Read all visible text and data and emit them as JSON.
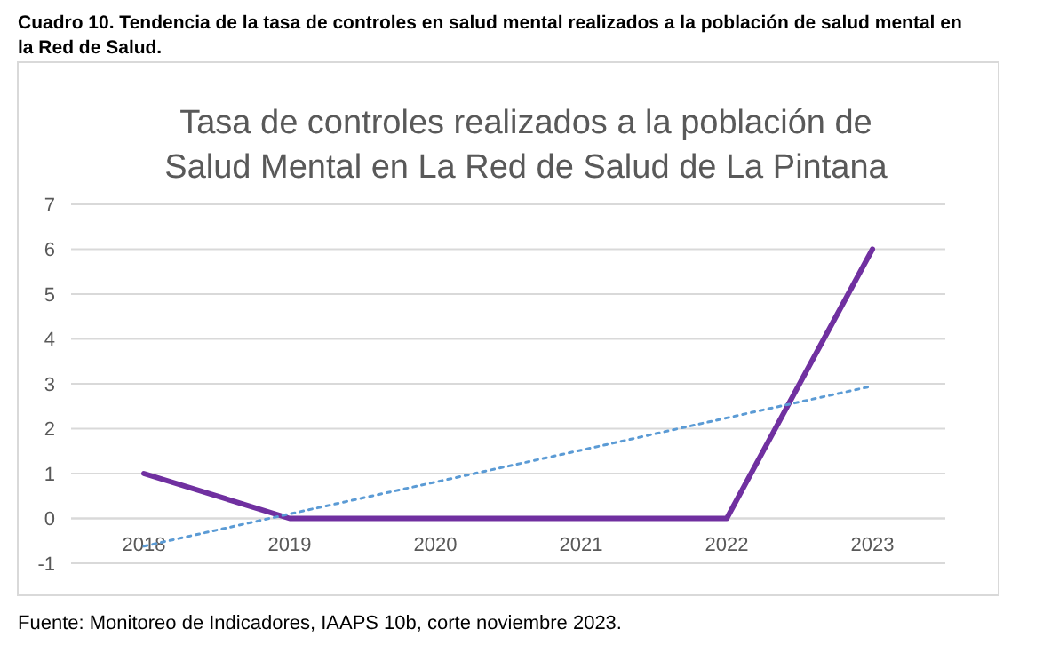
{
  "chart_data": {
    "type": "line",
    "subtitle": "Cuadro 10. Tendencia de la tasa de controles en salud mental realizados a la población de salud mental en la Red de Salud.",
    "title": "Tasa de controles realizados a la población de Salud Mental en La Red de Salud de La Pintana",
    "categories": [
      "2018",
      "2019",
      "2020",
      "2021",
      "2022",
      "2023"
    ],
    "series": [
      {
        "color": "#7030a0",
        "values": [
          1,
          0,
          0,
          0,
          0,
          6
        ],
        "line_style": "solid"
      },
      {
        "color": "#5b9bd5",
        "values": [
          -0.62,
          0.1,
          0.81,
          1.52,
          2.24,
          2.95
        ],
        "line_style": "dotted"
      }
    ],
    "ylim": [
      -1,
      7
    ],
    "yticks": [
      -1,
      0,
      1,
      2,
      3,
      4,
      5,
      6,
      7
    ],
    "grid": "y",
    "annotations": [
      "Fuente: Monitoreo de Indicadores, IAAPS 10b, corte noviembre 2023."
    ]
  }
}
